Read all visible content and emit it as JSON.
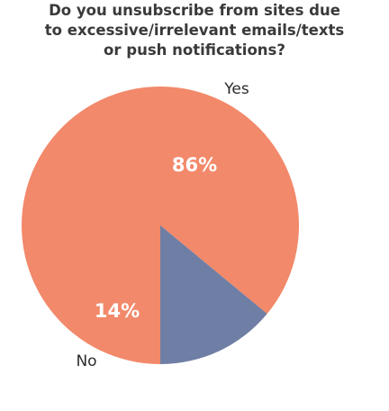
{
  "chart_data": {
    "type": "pie",
    "title_lines": [
      "Do you unsubscribe from sites due",
      "to excessive/irrelevant emails/texts",
      "or push notifications?"
    ],
    "slices": [
      {
        "label": "Yes",
        "value": 86,
        "value_label": "86%",
        "color": "#f2896a"
      },
      {
        "label": "No",
        "value": 14,
        "value_label": "14%",
        "color": "#6f7ea4"
      }
    ],
    "start": "bottom",
    "direction": "clockwise"
  }
}
